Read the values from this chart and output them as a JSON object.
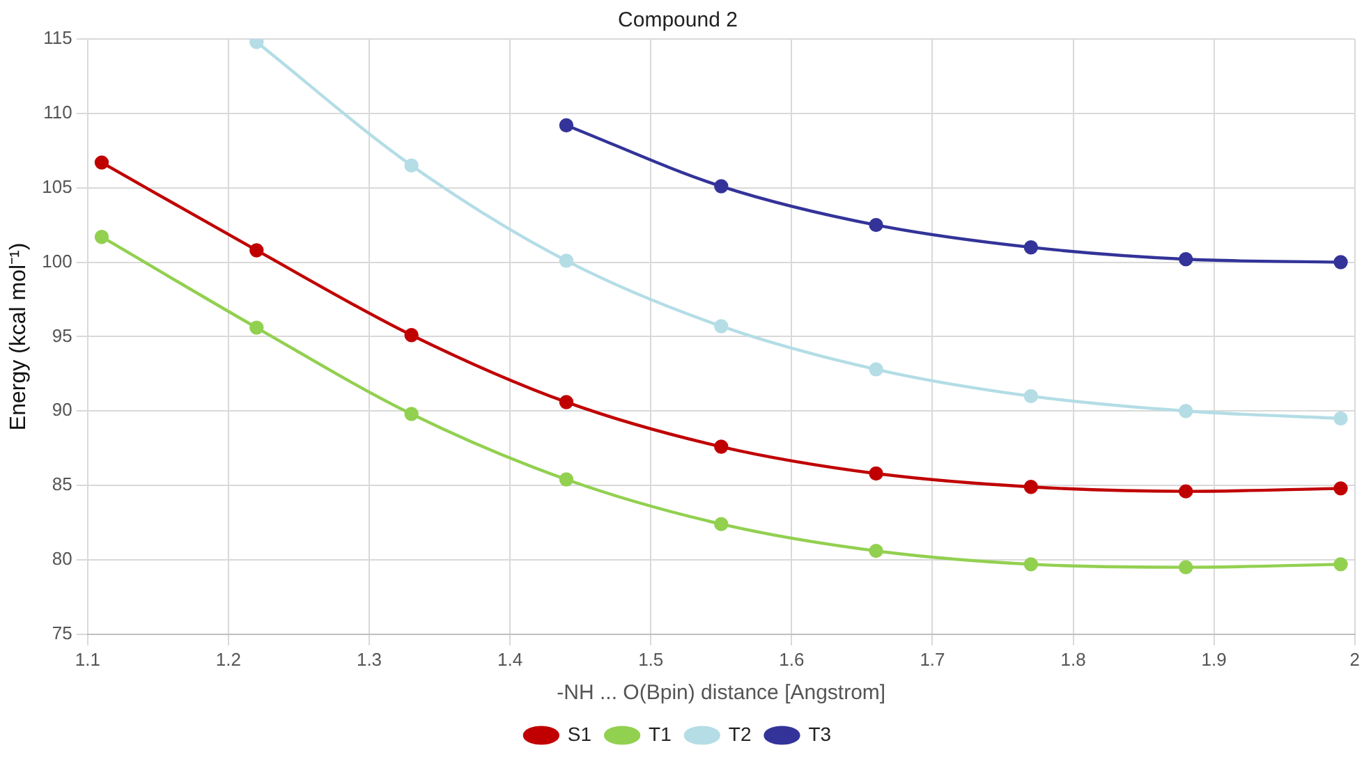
{
  "chart_data": {
    "type": "line",
    "title": "Compound 2",
    "xlabel": "-NH ... O(Bpin) distance [Angstrom]",
    "ylabel": "Energy (kcal mol⁻¹)",
    "x": [
      1.11,
      1.22,
      1.33,
      1.44,
      1.55,
      1.66,
      1.77,
      1.88,
      1.99
    ],
    "series": [
      {
        "name": "S1",
        "color": "#c00000",
        "values": [
          106.7,
          100.8,
          95.1,
          90.6,
          87.6,
          85.8,
          84.9,
          84.6,
          84.8
        ]
      },
      {
        "name": "T1",
        "color": "#92d050",
        "values": [
          101.7,
          95.6,
          89.8,
          85.4,
          82.4,
          80.6,
          79.7,
          79.5,
          79.7
        ]
      },
      {
        "name": "T2",
        "color": "#b4dde6",
        "values": [
          null,
          114.8,
          106.5,
          100.1,
          95.7,
          92.8,
          91.0,
          90.0,
          89.5
        ]
      },
      {
        "name": "T3",
        "color": "#333399",
        "values": [
          null,
          null,
          null,
          109.2,
          105.1,
          102.5,
          101.0,
          100.2,
          100.0
        ]
      }
    ],
    "xlim": [
      1.1,
      2
    ],
    "xticks": [
      1.1,
      1.2,
      1.3,
      1.4,
      1.5,
      1.6,
      1.7,
      1.8,
      1.9,
      2
    ],
    "ylim": [
      75,
      115
    ],
    "yticks": [
      75,
      80,
      85,
      90,
      95,
      100,
      105,
      110,
      115
    ],
    "grid": true,
    "legend": "bottom",
    "marker": "circle",
    "line_style": "solid"
  }
}
